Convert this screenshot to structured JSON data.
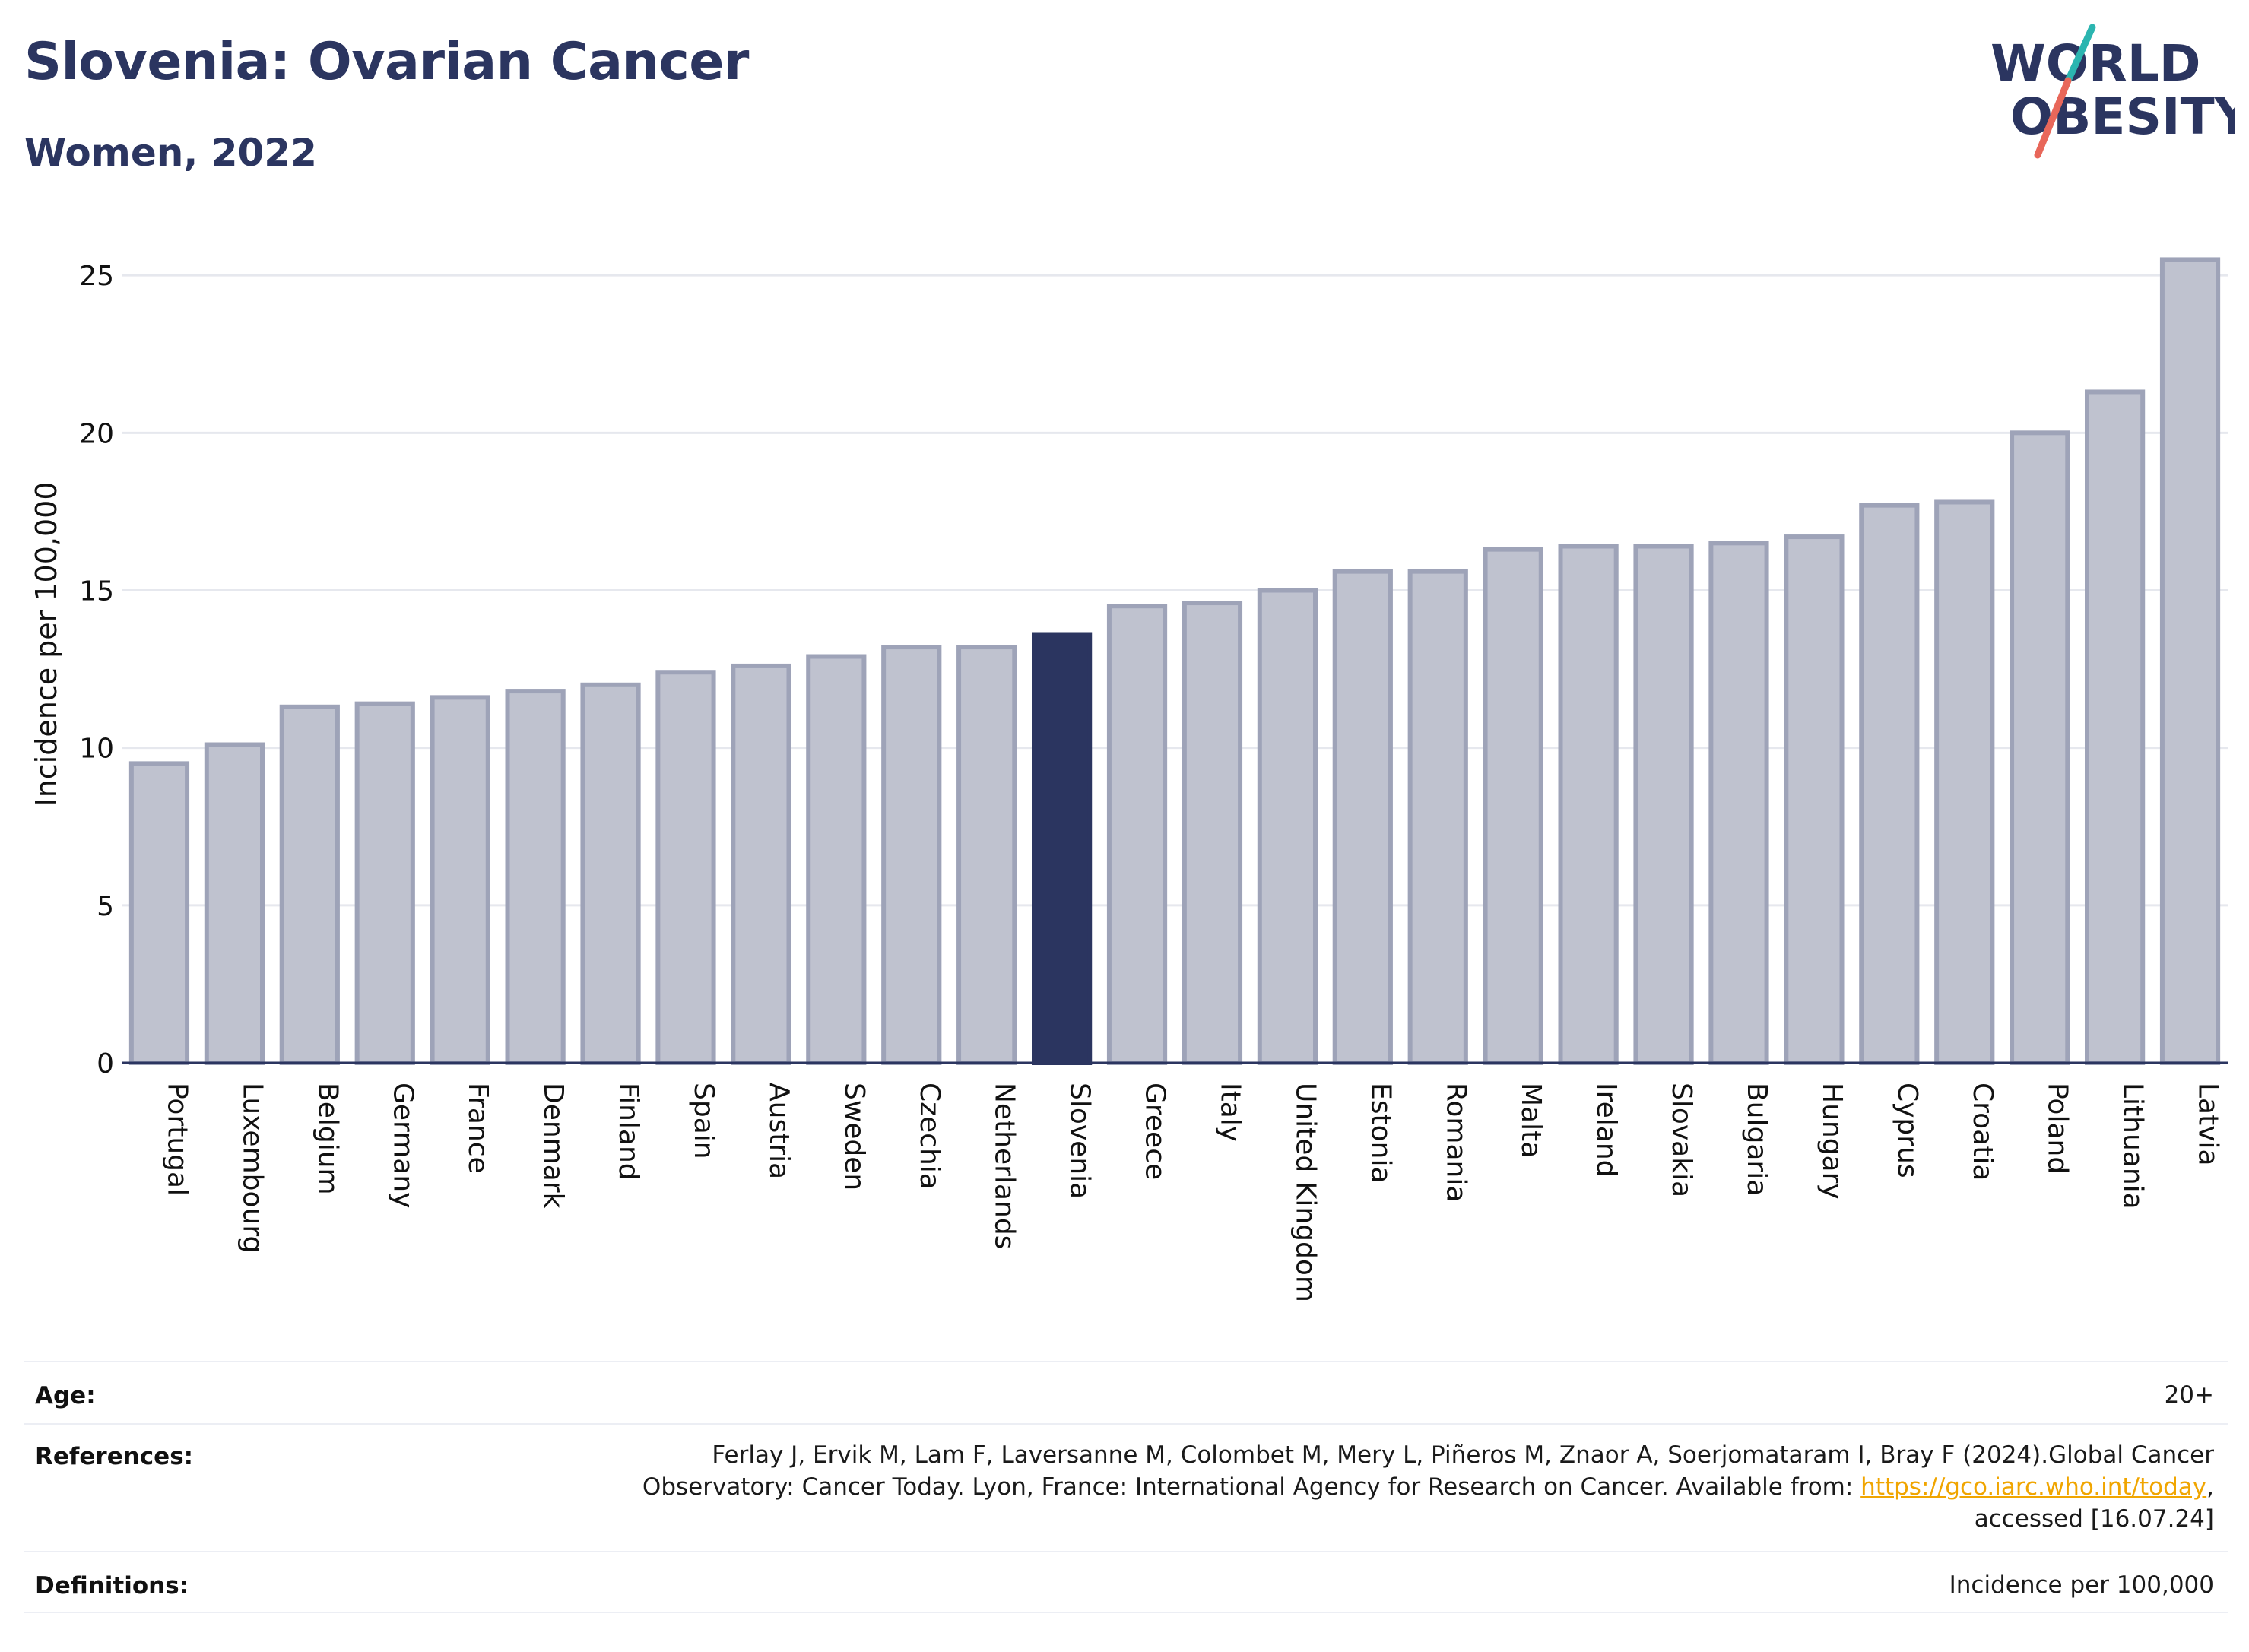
{
  "header": {
    "title": "Slovenia: Ovarian Cancer",
    "subtitle": "Women, 2022"
  },
  "logo": {
    "line1": "WORLD",
    "line2": "OBESITY",
    "colors": {
      "text": "#2b3560",
      "slash_top": "#2bb5b0",
      "slash_bottom": "#e8675a"
    }
  },
  "chart_data": {
    "type": "bar",
    "ylabel": "Incidence per 100,000",
    "xlabel": "",
    "ylim": [
      0,
      26.5
    ],
    "yticks": [
      0,
      5,
      10,
      15,
      20,
      25
    ],
    "grid": true,
    "highlight": "Slovenia",
    "colors": {
      "bar": "#bfc2cf",
      "bar_edge": "#9ea3b8",
      "highlight": "#2b3560",
      "grid": "#e6e8ee",
      "axis": "#2b3560"
    },
    "categories": [
      "Portugal",
      "Luxembourg",
      "Belgium",
      "Germany",
      "France",
      "Denmark",
      "Finland",
      "Spain",
      "Austria",
      "Sweden",
      "Czechia",
      "Netherlands",
      "Slovenia",
      "Greece",
      "Italy",
      "United Kingdom",
      "Estonia",
      "Romania",
      "Malta",
      "Ireland",
      "Slovakia",
      "Bulgaria",
      "Hungary",
      "Cyprus",
      "Croatia",
      "Poland",
      "Lithuania",
      "Latvia"
    ],
    "values": [
      9.5,
      10.1,
      11.3,
      11.4,
      11.6,
      11.8,
      12.0,
      12.4,
      12.6,
      12.9,
      13.2,
      13.2,
      13.6,
      14.5,
      14.6,
      15.0,
      15.6,
      15.6,
      16.3,
      16.4,
      16.4,
      16.5,
      16.7,
      17.7,
      17.8,
      20.0,
      21.3,
      25.5
    ]
  },
  "footer": {
    "age_label": "Age:",
    "age_value": "20+",
    "references_label": "References:",
    "references_line1": "Ferlay J, Ervik M, Lam F, Laversanne M, Colombet M, Mery L, Piñeros M, Znaor A, Soerjomataram I, Bray F (2024).Global Cancer",
    "references_line2_prefix": "Observatory: Cancer Today. Lyon, France: International Agency for Research on Cancer. Available from: ",
    "references_link": "https://gco.iarc.who.int/today",
    "references_line2_suffix": ",",
    "references_line3": "accessed [16.07.24]",
    "definitions_label": "Definitions:",
    "definitions_value": "Incidence per 100,000"
  }
}
